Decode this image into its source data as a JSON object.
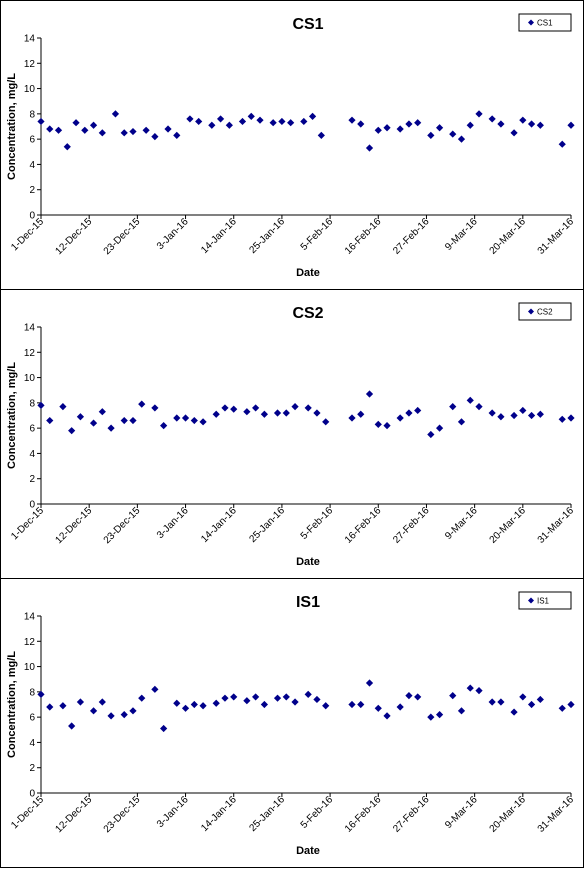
{
  "colors": {
    "marker": "#00008B",
    "axis": "#000000",
    "panel_border": "#000000"
  },
  "chart_data": [
    {
      "type": "scatter",
      "title": "CS1",
      "xlabel": "Date",
      "ylabel": "Concentration, mg/L",
      "ylim": [
        0,
        14
      ],
      "yticks": [
        "0",
        "2",
        "4",
        "6",
        "8",
        "10",
        "12",
        "14"
      ],
      "xlim": [
        "2015-12-01",
        "2016-03-31"
      ],
      "xticks": [
        "1-Dec-15",
        "12-Dec-15",
        "23-Dec-15",
        "3-Jan-16",
        "14-Jan-16",
        "25-Jan-16",
        "5-Feb-16",
        "16-Feb-16",
        "27-Feb-16",
        "9-Mar-16",
        "20-Mar-16",
        "31-Mar-16"
      ],
      "legend_position": "top-right",
      "grid": false,
      "series": [
        {
          "name": "CS1",
          "marker": "diamond",
          "points": [
            [
              "2015-12-01",
              7.4
            ],
            [
              "2015-12-03",
              6.8
            ],
            [
              "2015-12-05",
              6.7
            ],
            [
              "2015-12-07",
              5.4
            ],
            [
              "2015-12-09",
              7.3
            ],
            [
              "2015-12-11",
              6.7
            ],
            [
              "2015-12-13",
              7.1
            ],
            [
              "2015-12-15",
              6.5
            ],
            [
              "2015-12-18",
              8.0
            ],
            [
              "2015-12-20",
              6.5
            ],
            [
              "2015-12-22",
              6.6
            ],
            [
              "2015-12-25",
              6.7
            ],
            [
              "2015-12-27",
              6.2
            ],
            [
              "2015-12-30",
              6.8
            ],
            [
              "2016-01-01",
              6.3
            ],
            [
              "2016-01-04",
              7.6
            ],
            [
              "2016-01-06",
              7.4
            ],
            [
              "2016-01-09",
              7.1
            ],
            [
              "2016-01-11",
              7.6
            ],
            [
              "2016-01-13",
              7.1
            ],
            [
              "2016-01-16",
              7.4
            ],
            [
              "2016-01-18",
              7.8
            ],
            [
              "2016-01-20",
              7.5
            ],
            [
              "2016-01-23",
              7.3
            ],
            [
              "2016-01-25",
              7.4
            ],
            [
              "2016-01-27",
              7.3
            ],
            [
              "2016-01-30",
              7.4
            ],
            [
              "2016-02-01",
              7.8
            ],
            [
              "2016-02-03",
              6.3
            ],
            [
              "2016-02-10",
              7.5
            ],
            [
              "2016-02-12",
              7.2
            ],
            [
              "2016-02-14",
              5.3
            ],
            [
              "2016-02-16",
              6.7
            ],
            [
              "2016-02-18",
              6.9
            ],
            [
              "2016-02-21",
              6.8
            ],
            [
              "2016-02-23",
              7.2
            ],
            [
              "2016-02-25",
              7.3
            ],
            [
              "2016-02-28",
              6.3
            ],
            [
              "2016-03-01",
              6.9
            ],
            [
              "2016-03-04",
              6.4
            ],
            [
              "2016-03-06",
              6.0
            ],
            [
              "2016-03-08",
              7.1
            ],
            [
              "2016-03-10",
              8.0
            ],
            [
              "2016-03-13",
              7.6
            ],
            [
              "2016-03-15",
              7.2
            ],
            [
              "2016-03-18",
              6.5
            ],
            [
              "2016-03-20",
              7.5
            ],
            [
              "2016-03-22",
              7.2
            ],
            [
              "2016-03-24",
              7.1
            ],
            [
              "2016-03-29",
              5.6
            ],
            [
              "2016-03-31",
              7.1
            ]
          ]
        }
      ]
    },
    {
      "type": "scatter",
      "title": "CS2",
      "xlabel": "Date",
      "ylabel": "Concentration, mg/L",
      "ylim": [
        0,
        14
      ],
      "yticks": [
        "0",
        "2",
        "4",
        "6",
        "8",
        "10",
        "12",
        "14"
      ],
      "xlim": [
        "2015-12-01",
        "2016-03-31"
      ],
      "xticks": [
        "1-Dec-15",
        "12-Dec-15",
        "23-Dec-15",
        "3-Jan-16",
        "14-Jan-16",
        "25-Jan-16",
        "5-Feb-16",
        "16-Feb-16",
        "27-Feb-16",
        "9-Mar-16",
        "20-Mar-16",
        "31-Mar-16"
      ],
      "legend_position": "top-right",
      "grid": false,
      "series": [
        {
          "name": "CS2",
          "marker": "diamond",
          "points": [
            [
              "2015-12-01",
              7.8
            ],
            [
              "2015-12-03",
              6.6
            ],
            [
              "2015-12-06",
              7.7
            ],
            [
              "2015-12-08",
              5.8
            ],
            [
              "2015-12-10",
              6.9
            ],
            [
              "2015-12-13",
              6.4
            ],
            [
              "2015-12-15",
              7.3
            ],
            [
              "2015-12-17",
              6.0
            ],
            [
              "2015-12-20",
              6.6
            ],
            [
              "2015-12-22",
              6.6
            ],
            [
              "2015-12-24",
              7.9
            ],
            [
              "2015-12-27",
              7.6
            ],
            [
              "2015-12-29",
              6.2
            ],
            [
              "2016-01-01",
              6.8
            ],
            [
              "2016-01-03",
              6.8
            ],
            [
              "2016-01-05",
              6.6
            ],
            [
              "2016-01-07",
              6.5
            ],
            [
              "2016-01-10",
              7.1
            ],
            [
              "2016-01-12",
              7.6
            ],
            [
              "2016-01-14",
              7.5
            ],
            [
              "2016-01-17",
              7.3
            ],
            [
              "2016-01-19",
              7.6
            ],
            [
              "2016-01-21",
              7.1
            ],
            [
              "2016-01-24",
              7.2
            ],
            [
              "2016-01-26",
              7.2
            ],
            [
              "2016-01-28",
              7.7
            ],
            [
              "2016-01-31",
              7.6
            ],
            [
              "2016-02-02",
              7.2
            ],
            [
              "2016-02-04",
              6.5
            ],
            [
              "2016-02-10",
              6.8
            ],
            [
              "2016-02-12",
              7.1
            ],
            [
              "2016-02-14",
              8.7
            ],
            [
              "2016-02-16",
              6.3
            ],
            [
              "2016-02-18",
              6.2
            ],
            [
              "2016-02-21",
              6.8
            ],
            [
              "2016-02-23",
              7.2
            ],
            [
              "2016-02-25",
              7.4
            ],
            [
              "2016-02-28",
              5.5
            ],
            [
              "2016-03-01",
              6.0
            ],
            [
              "2016-03-04",
              7.7
            ],
            [
              "2016-03-06",
              6.5
            ],
            [
              "2016-03-08",
              8.2
            ],
            [
              "2016-03-10",
              7.7
            ],
            [
              "2016-03-13",
              7.2
            ],
            [
              "2016-03-15",
              6.9
            ],
            [
              "2016-03-18",
              7.0
            ],
            [
              "2016-03-20",
              7.4
            ],
            [
              "2016-03-22",
              7.0
            ],
            [
              "2016-03-24",
              7.1
            ],
            [
              "2016-03-29",
              6.7
            ],
            [
              "2016-03-31",
              6.8
            ]
          ]
        }
      ]
    },
    {
      "type": "scatter",
      "title": "IS1",
      "xlabel": "Date",
      "ylabel": "Concentration, mg/L",
      "ylim": [
        0,
        14
      ],
      "yticks": [
        "0",
        "2",
        "4",
        "6",
        "8",
        "10",
        "12",
        "14"
      ],
      "xlim": [
        "2015-12-01",
        "2016-03-31"
      ],
      "xticks": [
        "1-Dec-15",
        "12-Dec-15",
        "23-Dec-15",
        "3-Jan-16",
        "14-Jan-16",
        "25-Jan-16",
        "5-Feb-16",
        "16-Feb-16",
        "27-Feb-16",
        "9-Mar-16",
        "20-Mar-16",
        "31-Mar-16"
      ],
      "legend_position": "top-right",
      "grid": false,
      "series": [
        {
          "name": "IS1",
          "marker": "diamond",
          "points": [
            [
              "2015-12-01",
              7.8
            ],
            [
              "2015-12-03",
              6.8
            ],
            [
              "2015-12-06",
              6.9
            ],
            [
              "2015-12-08",
              5.3
            ],
            [
              "2015-12-10",
              7.2
            ],
            [
              "2015-12-13",
              6.5
            ],
            [
              "2015-12-15",
              7.2
            ],
            [
              "2015-12-17",
              6.1
            ],
            [
              "2015-12-20",
              6.2
            ],
            [
              "2015-12-22",
              6.5
            ],
            [
              "2015-12-24",
              7.5
            ],
            [
              "2015-12-27",
              8.2
            ],
            [
              "2015-12-29",
              5.1
            ],
            [
              "2016-01-01",
              7.1
            ],
            [
              "2016-01-03",
              6.7
            ],
            [
              "2016-01-05",
              7.0
            ],
            [
              "2016-01-07",
              6.9
            ],
            [
              "2016-01-10",
              7.1
            ],
            [
              "2016-01-12",
              7.5
            ],
            [
              "2016-01-14",
              7.6
            ],
            [
              "2016-01-17",
              7.3
            ],
            [
              "2016-01-19",
              7.6
            ],
            [
              "2016-01-21",
              7.0
            ],
            [
              "2016-01-24",
              7.5
            ],
            [
              "2016-01-26",
              7.6
            ],
            [
              "2016-01-28",
              7.2
            ],
            [
              "2016-01-31",
              7.8
            ],
            [
              "2016-02-02",
              7.4
            ],
            [
              "2016-02-04",
              6.9
            ],
            [
              "2016-02-10",
              7.0
            ],
            [
              "2016-02-12",
              7.0
            ],
            [
              "2016-02-14",
              8.7
            ],
            [
              "2016-02-16",
              6.7
            ],
            [
              "2016-02-18",
              6.1
            ],
            [
              "2016-02-21",
              6.8
            ],
            [
              "2016-02-23",
              7.7
            ],
            [
              "2016-02-25",
              7.6
            ],
            [
              "2016-02-28",
              6.0
            ],
            [
              "2016-03-01",
              6.2
            ],
            [
              "2016-03-04",
              7.7
            ],
            [
              "2016-03-06",
              6.5
            ],
            [
              "2016-03-08",
              8.3
            ],
            [
              "2016-03-10",
              8.1
            ],
            [
              "2016-03-13",
              7.2
            ],
            [
              "2016-03-15",
              7.2
            ],
            [
              "2016-03-18",
              6.4
            ],
            [
              "2016-03-20",
              7.6
            ],
            [
              "2016-03-22",
              7.0
            ],
            [
              "2016-03-24",
              7.4
            ],
            [
              "2016-03-29",
              6.7
            ],
            [
              "2016-03-31",
              7.0
            ]
          ]
        }
      ]
    }
  ]
}
